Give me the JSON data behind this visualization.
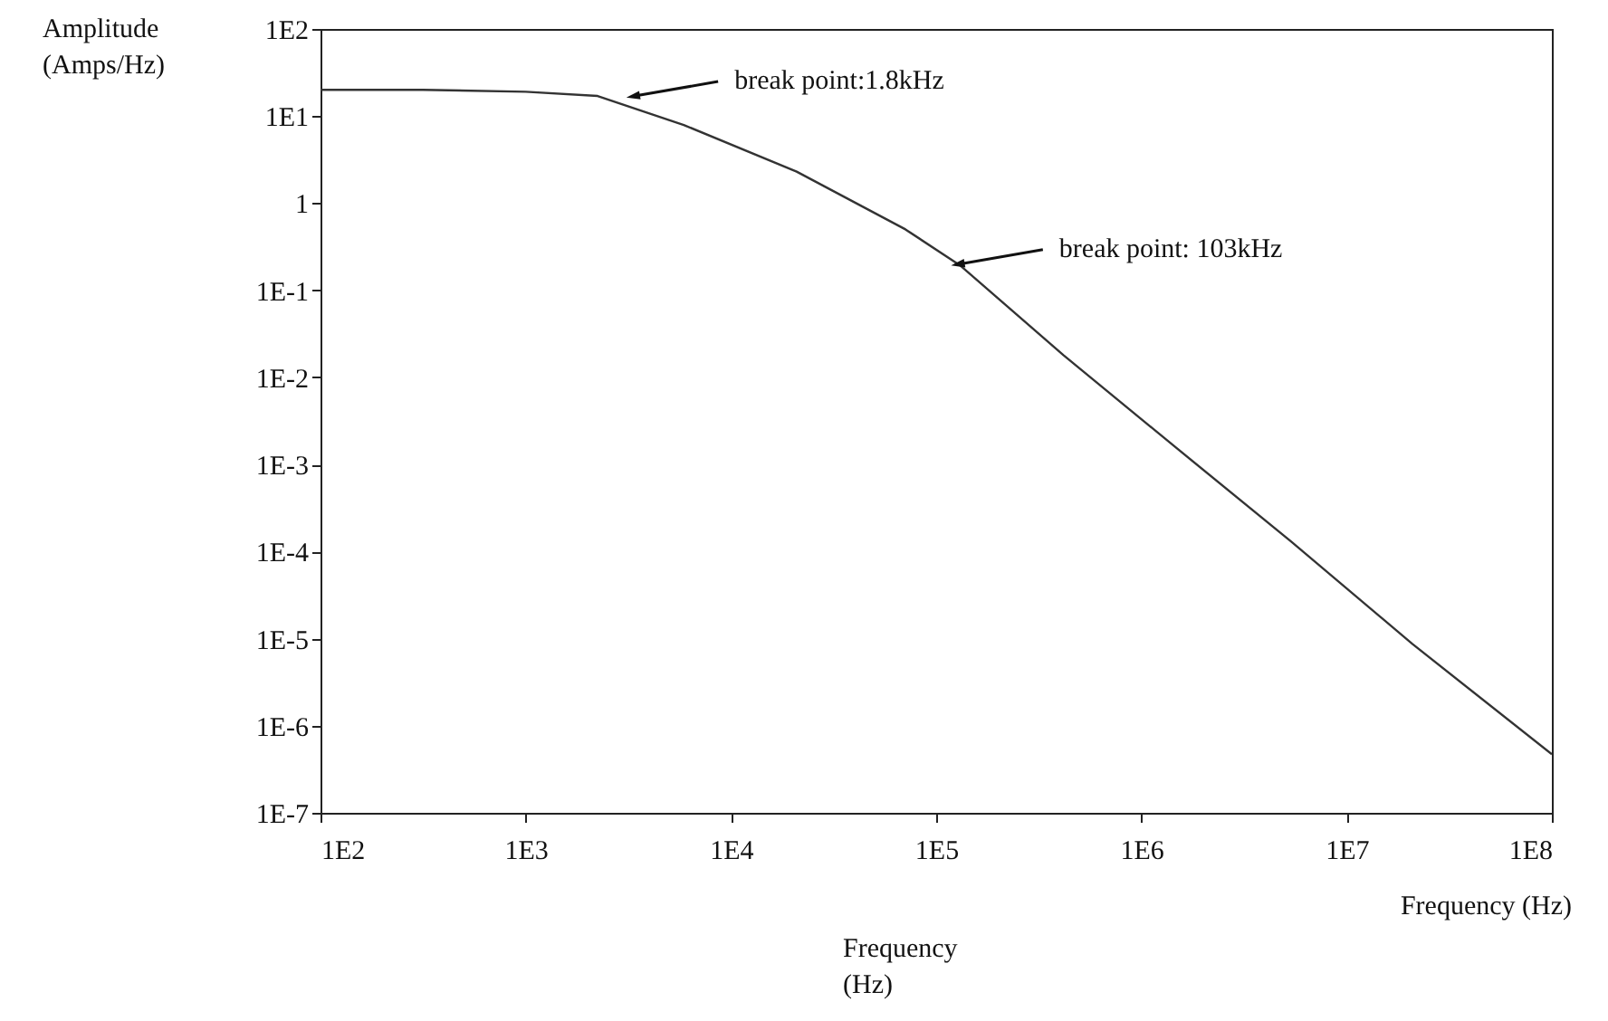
{
  "chart_data": {
    "type": "line",
    "xlabel": "Frequency (Hz)",
    "ylabel": "Amplitude (Amps/Hz)",
    "x": [
      100,
      316,
      1000,
      2240,
      5890,
      20900,
      70800,
      131800,
      417000,
      1410000,
      5370000,
      20900000,
      100000000
    ],
    "series": [
      {
        "color": "#333333",
        "values": [
          20,
          20,
          19,
          17,
          7.9,
          2.3,
          0.5,
          0.19,
          0.018,
          0.0017,
          0.00013,
          8.7e-06,
          4.7e-07
        ]
      }
    ],
    "log": "xy",
    "xlim": [
      100,
      100000000
    ],
    "ylim": [
      1e-07,
      100
    ],
    "xticks": [
      {
        "value": 100,
        "label": "1E2"
      },
      {
        "value": 1000,
        "label": "1E3"
      },
      {
        "value": 10000,
        "label": "1E4"
      },
      {
        "value": 100000,
        "label": "1E5"
      },
      {
        "value": 1000000,
        "label": "1E6"
      },
      {
        "value": 10000000,
        "label": "1E7"
      },
      {
        "value": 100000000,
        "label": "1E8"
      }
    ],
    "yticks": [
      {
        "value": 100,
        "label": "1E2"
      },
      {
        "value": 10,
        "label": "1E1"
      },
      1,
      {
        "value": 0.1,
        "label": "1E-1"
      },
      {
        "value": 0.01,
        "label": "1E-2"
      },
      {
        "value": 0.001,
        "label": "1E-3"
      },
      {
        "value": 0.0001,
        "label": "1E-4"
      },
      {
        "value": 1e-05,
        "label": "1E-5"
      },
      {
        "value": 1e-06,
        "label": "1E-6"
      },
      {
        "value": 1e-07,
        "label": "1E-7"
      }
    ],
    "annotations": [
      {
        "text": "break point:1.8kHz",
        "x": 3400,
        "y": 17
      },
      {
        "text": "break point: 103kHz",
        "x": 130000,
        "y": 0.2
      },
      "Frequency (Hz)"
    ]
  }
}
